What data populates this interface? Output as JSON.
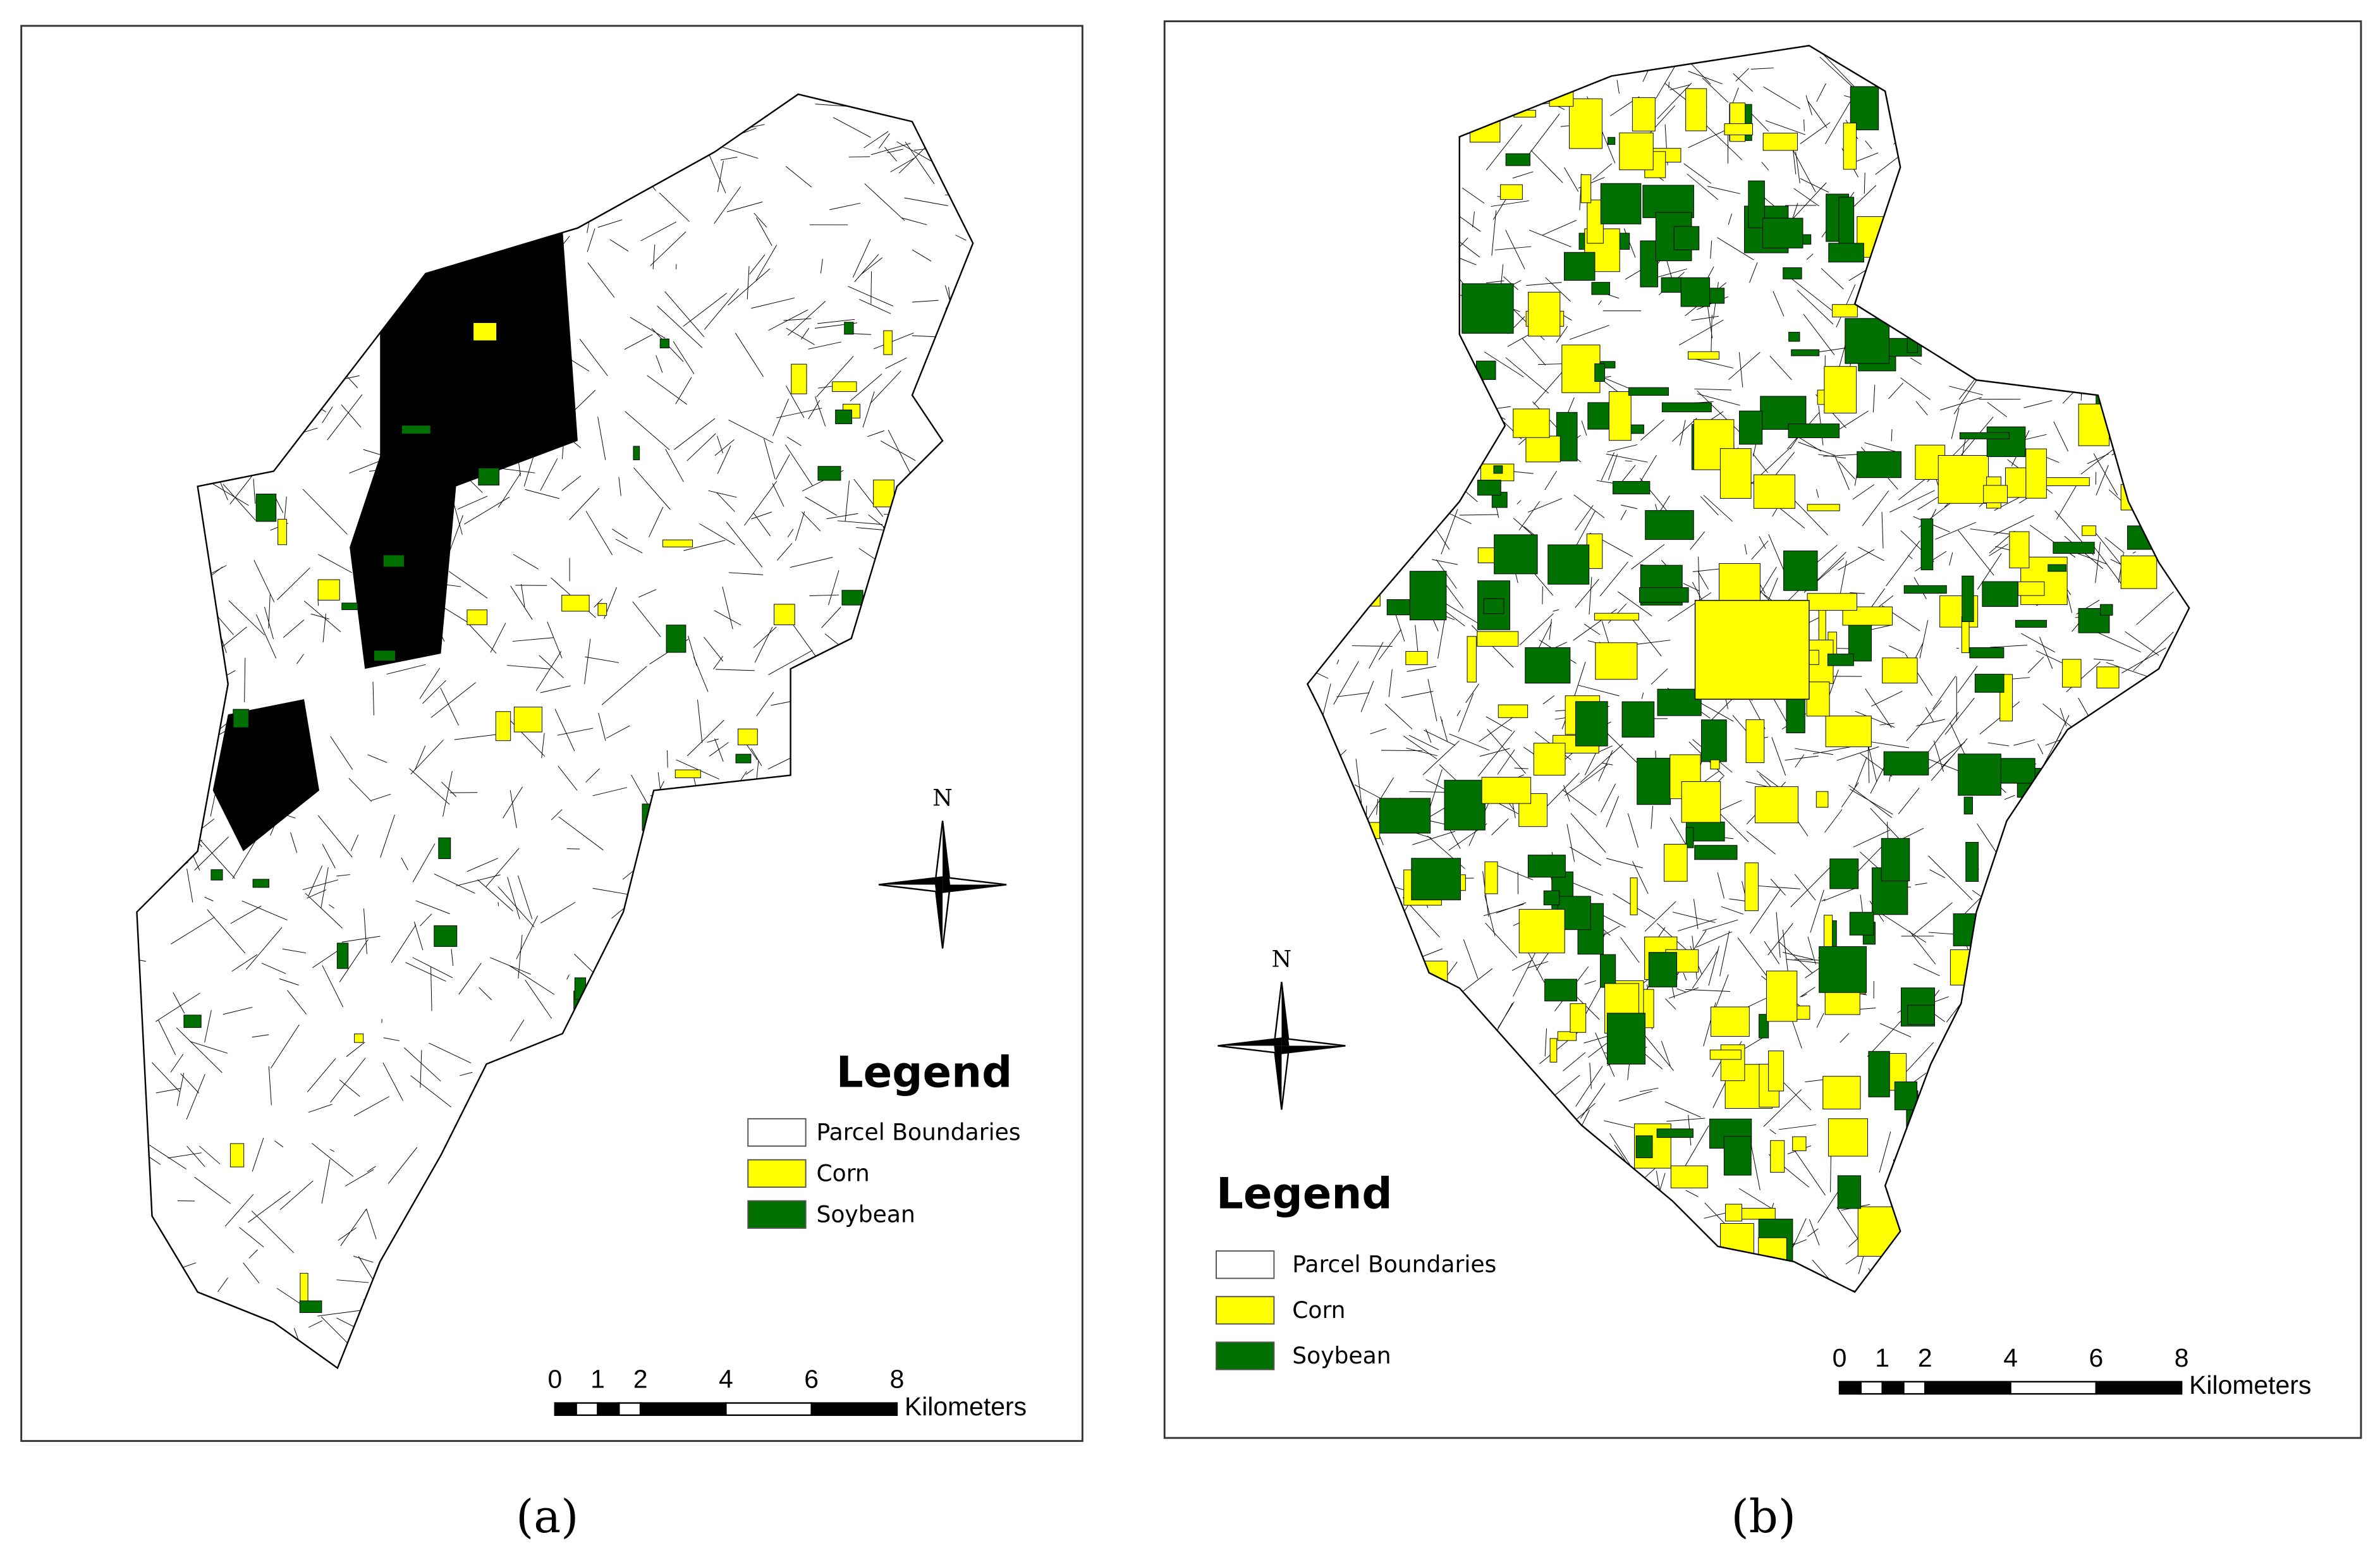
{
  "panels": [
    {
      "caption": "(a)",
      "north": "N",
      "legend": {
        "title": "Legend",
        "items": [
          {
            "label": "Parcel Boundaries",
            "color": "#ffffff"
          },
          {
            "label": "Corn",
            "color": "#ffff00"
          },
          {
            "label": "Soybean",
            "color": "#007000"
          }
        ]
      },
      "scale": {
        "ticks": [
          0,
          1,
          2,
          4,
          6,
          8
        ],
        "unit": "Kilometers"
      }
    },
    {
      "caption": "(b)",
      "north": "N",
      "legend": {
        "title": "Legend",
        "items": [
          {
            "label": "Parcel Boundaries",
            "color": "#ffffff"
          },
          {
            "label": "Corn",
            "color": "#ffff00"
          },
          {
            "label": "Soybean",
            "color": "#007000"
          }
        ]
      },
      "scale": {
        "ticks": [
          0,
          1,
          2,
          4,
          6,
          8
        ],
        "unit": "Kilometers"
      }
    }
  ]
}
